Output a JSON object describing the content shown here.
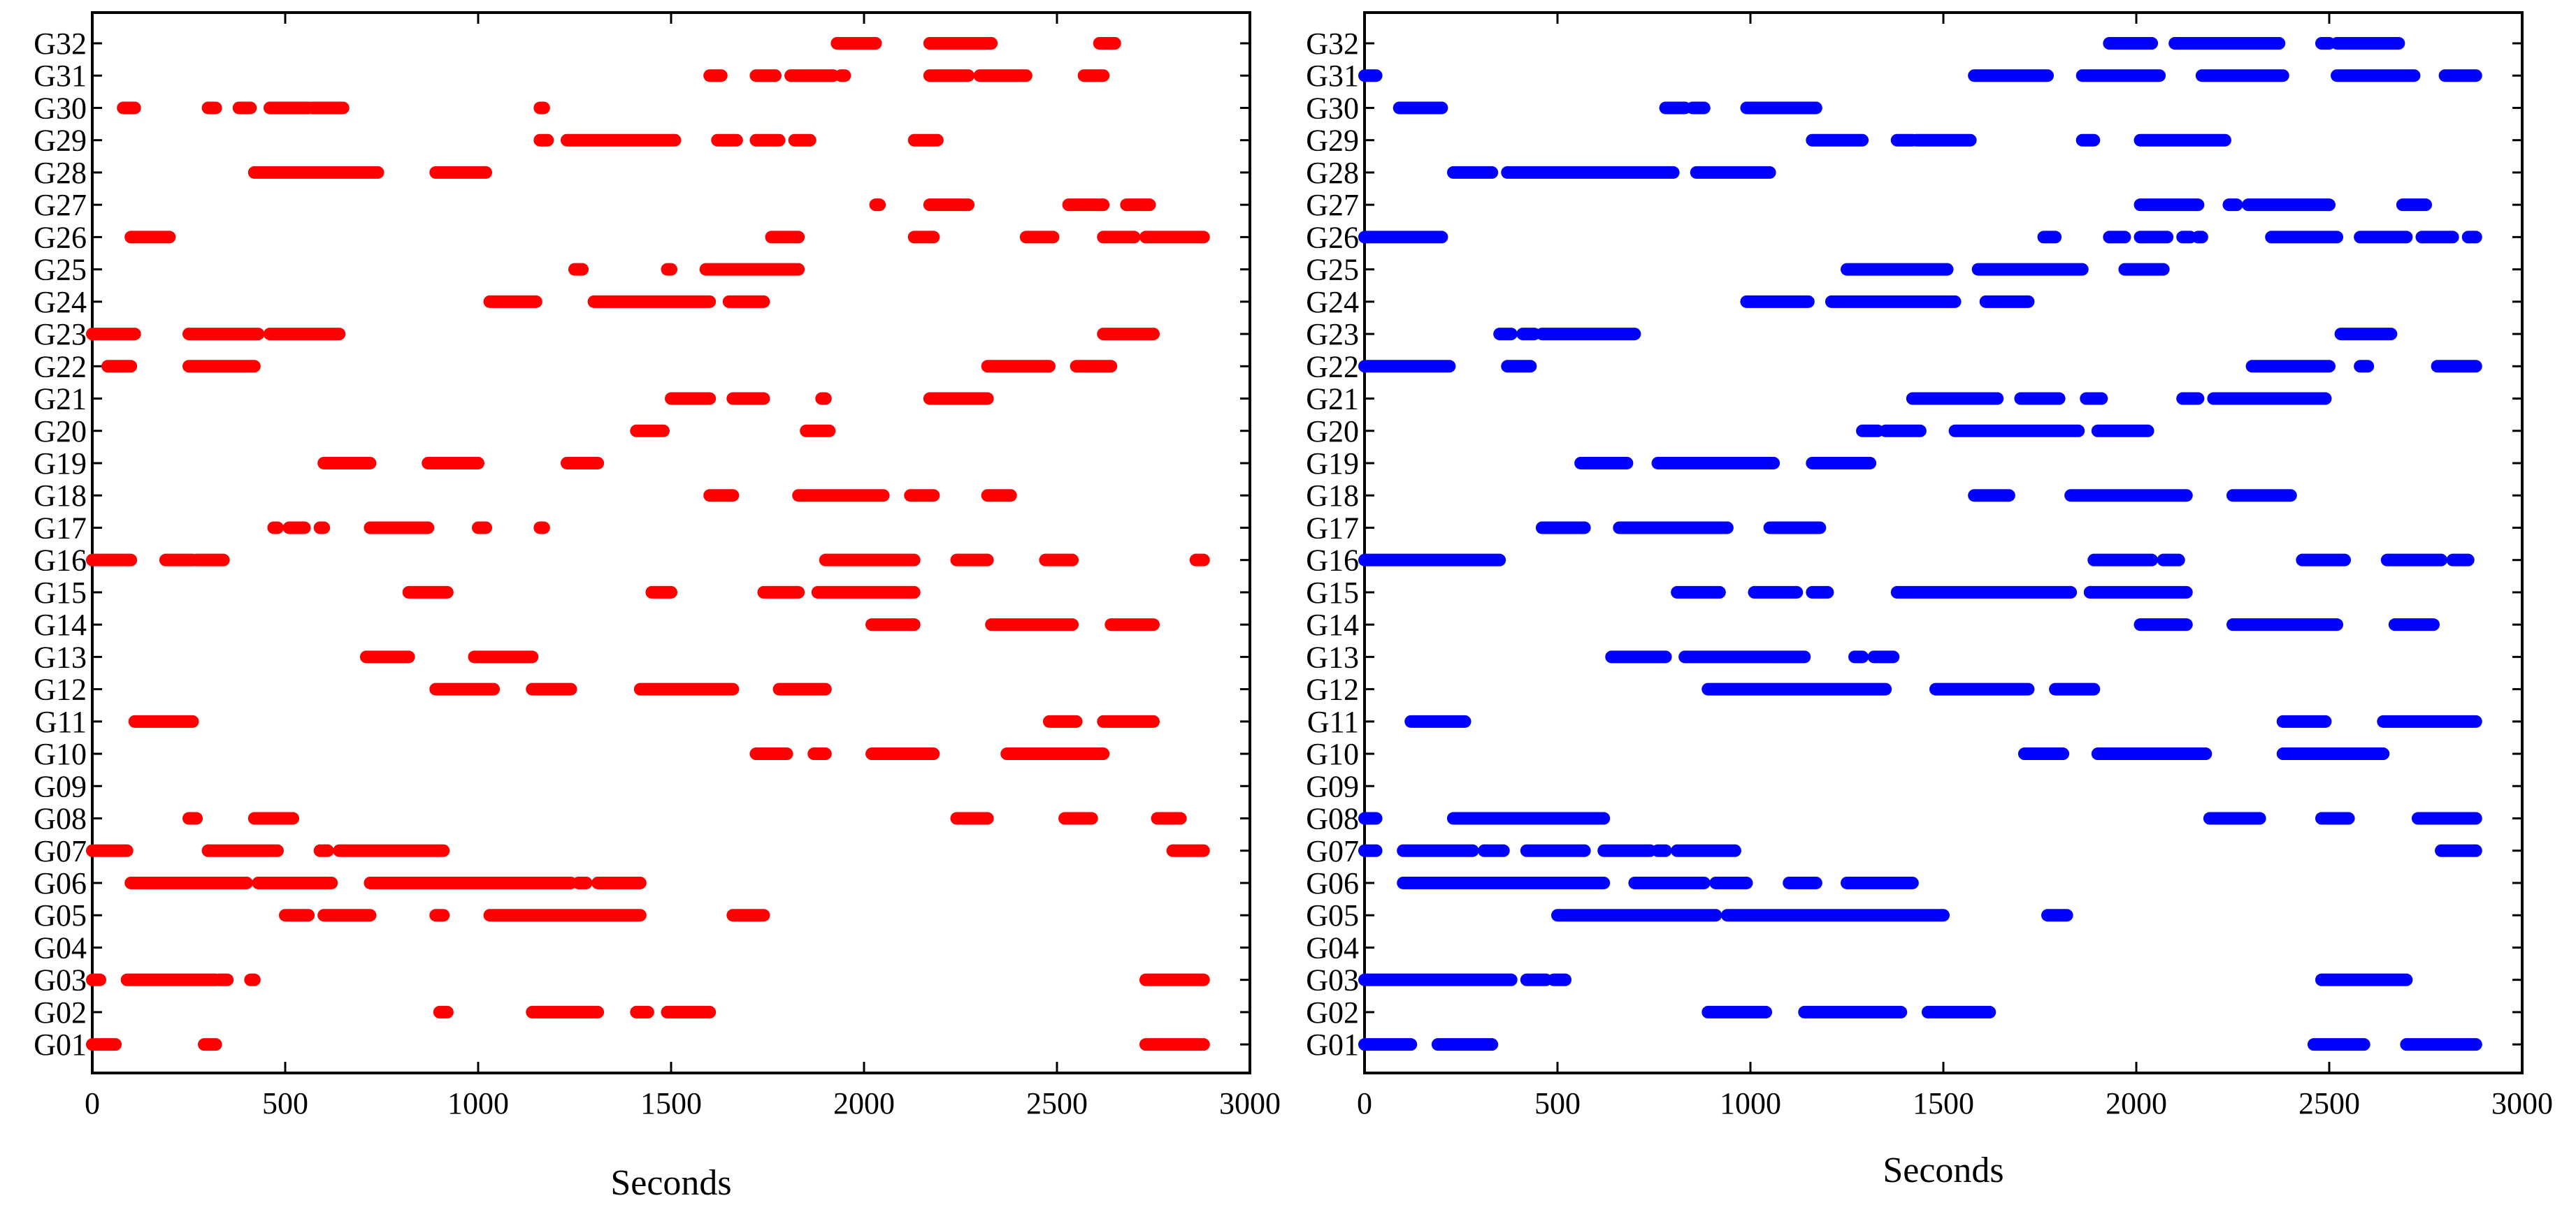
{
  "chart_data": [
    {
      "type": "scatter",
      "title": "",
      "xlabel": "Seconds",
      "ylabel": "",
      "xlim": [
        0,
        3000
      ],
      "xticks": [
        0,
        500,
        1000,
        1500,
        2000,
        2500,
        3000
      ],
      "categories": [
        "G01",
        "G02",
        "G03",
        "G04",
        "G05",
        "G06",
        "G07",
        "G08",
        "G09",
        "G10",
        "G11",
        "G12",
        "G13",
        "G14",
        "G15",
        "G16",
        "G17",
        "G18",
        "G19",
        "G20",
        "G21",
        "G22",
        "G23",
        "G24",
        "G25",
        "G26",
        "G27",
        "G28",
        "G29",
        "G30",
        "G31",
        "G32"
      ],
      "marker_color": "#ff0000",
      "grid": false,
      "segments": {
        "G01": [
          [
            0,
            60
          ],
          [
            290,
            320
          ],
          [
            2730,
            2880
          ]
        ],
        "G02": [
          [
            900,
            920
          ],
          [
            1140,
            1310
          ],
          [
            1410,
            1440
          ],
          [
            1490,
            1600
          ]
        ],
        "G03": [
          [
            0,
            20
          ],
          [
            90,
            320
          ],
          [
            330,
            350
          ],
          [
            410,
            420
          ],
          [
            2730,
            2880
          ]
        ],
        "G04": [],
        "G05": [
          [
            500,
            560
          ],
          [
            600,
            720
          ],
          [
            890,
            910
          ],
          [
            1030,
            1420
          ],
          [
            1660,
            1740
          ]
        ],
        "G06": [
          [
            100,
            400
          ],
          [
            430,
            620
          ],
          [
            720,
            1240
          ],
          [
            1260,
            1280
          ],
          [
            1310,
            1420
          ]
        ],
        "G07": [
          [
            0,
            90
          ],
          [
            300,
            480
          ],
          [
            590,
            610
          ],
          [
            640,
            910
          ],
          [
            2800,
            2880
          ]
        ],
        "G08": [
          [
            250,
            270
          ],
          [
            420,
            520
          ],
          [
            2240,
            2320
          ],
          [
            2520,
            2590
          ],
          [
            2760,
            2820
          ]
        ],
        "G09": [],
        "G10": [
          [
            1720,
            1800
          ],
          [
            1870,
            1900
          ],
          [
            2020,
            2180
          ],
          [
            2370,
            2620
          ]
        ],
        "G11": [
          [
            110,
            260
          ],
          [
            2480,
            2550
          ],
          [
            2620,
            2750
          ]
        ],
        "G12": [
          [
            890,
            1040
          ],
          [
            1140,
            1240
          ],
          [
            1420,
            1660
          ],
          [
            1780,
            1900
          ]
        ],
        "G13": [
          [
            710,
            820
          ],
          [
            990,
            1140
          ]
        ],
        "G14": [
          [
            2020,
            2130
          ],
          [
            2330,
            2540
          ],
          [
            2640,
            2750
          ]
        ],
        "G15": [
          [
            820,
            920
          ],
          [
            1450,
            1500
          ],
          [
            1740,
            1830
          ],
          [
            1880,
            2130
          ]
        ],
        "G16": [
          [
            0,
            100
          ],
          [
            190,
            260
          ],
          [
            270,
            340
          ],
          [
            1900,
            2130
          ],
          [
            2240,
            2320
          ],
          [
            2470,
            2540
          ],
          [
            2860,
            2880
          ]
        ],
        "G17": [
          [
            470,
            480
          ],
          [
            510,
            550
          ],
          [
            590,
            600
          ],
          [
            720,
            870
          ],
          [
            1000,
            1020
          ],
          [
            1160,
            1170
          ]
        ],
        "G18": [
          [
            1600,
            1660
          ],
          [
            1830,
            2050
          ],
          [
            2120,
            2180
          ],
          [
            2320,
            2380
          ]
        ],
        "G19": [
          [
            600,
            720
          ],
          [
            870,
            1000
          ],
          [
            1230,
            1310
          ]
        ],
        "G20": [
          [
            1410,
            1480
          ],
          [
            1850,
            1910
          ]
        ],
        "G21": [
          [
            1500,
            1600
          ],
          [
            1660,
            1740
          ],
          [
            1890,
            1900
          ],
          [
            2170,
            2320
          ]
        ],
        "G22": [
          [
            40,
            100
          ],
          [
            250,
            420
          ],
          [
            2320,
            2480
          ],
          [
            2550,
            2640
          ]
        ],
        "G23": [
          [
            0,
            110
          ],
          [
            250,
            430
          ],
          [
            460,
            640
          ],
          [
            2620,
            2750
          ]
        ],
        "G24": [
          [
            1030,
            1150
          ],
          [
            1300,
            1600
          ],
          [
            1650,
            1740
          ]
        ],
        "G25": [
          [
            1250,
            1270
          ],
          [
            1490,
            1500
          ],
          [
            1590,
            1830
          ]
        ],
        "G26": [
          [
            100,
            200
          ],
          [
            1760,
            1830
          ],
          [
            2130,
            2180
          ],
          [
            2420,
            2490
          ],
          [
            2620,
            2700
          ],
          [
            2730,
            2880
          ]
        ],
        "G27": [
          [
            2030,
            2040
          ],
          [
            2170,
            2270
          ],
          [
            2530,
            2620
          ],
          [
            2680,
            2740
          ]
        ],
        "G28": [
          [
            420,
            740
          ],
          [
            890,
            1020
          ]
        ],
        "G29": [
          [
            1160,
            1180
          ],
          [
            1230,
            1510
          ],
          [
            1620,
            1670
          ],
          [
            1720,
            1780
          ],
          [
            1820,
            1860
          ],
          [
            2130,
            2190
          ]
        ],
        "G30": [
          [
            80,
            110
          ],
          [
            300,
            320
          ],
          [
            380,
            410
          ],
          [
            460,
            560
          ],
          [
            570,
            650
          ],
          [
            1160,
            1170
          ]
        ],
        "G31": [
          [
            1600,
            1630
          ],
          [
            1720,
            1770
          ],
          [
            1810,
            1920
          ],
          [
            1940,
            1950
          ],
          [
            2170,
            2270
          ],
          [
            2300,
            2420
          ],
          [
            2570,
            2620
          ]
        ],
        "G32": [
          [
            1930,
            2030
          ],
          [
            2170,
            2330
          ],
          [
            2610,
            2650
          ]
        ]
      }
    },
    {
      "type": "scatter",
      "title": "",
      "xlabel": "Seconds",
      "ylabel": "",
      "xlim": [
        0,
        3000
      ],
      "xticks": [
        0,
        500,
        1000,
        1500,
        2000,
        2500,
        3000
      ],
      "categories": [
        "G01",
        "G02",
        "G03",
        "G04",
        "G05",
        "G06",
        "G07",
        "G08",
        "G09",
        "G10",
        "G11",
        "G12",
        "G13",
        "G14",
        "G15",
        "G16",
        "G17",
        "G18",
        "G19",
        "G20",
        "G21",
        "G22",
        "G23",
        "G24",
        "G25",
        "G26",
        "G27",
        "G28",
        "G29",
        "G30",
        "G31",
        "G32"
      ],
      "marker_color": "#0000ff",
      "grid": false,
      "segments": {
        "G01": [
          [
            0,
            120
          ],
          [
            190,
            330
          ],
          [
            2460,
            2590
          ],
          [
            2700,
            2880
          ]
        ],
        "G02": [
          [
            890,
            1040
          ],
          [
            1140,
            1390
          ],
          [
            1460,
            1620
          ]
        ],
        "G03": [
          [
            0,
            380
          ],
          [
            420,
            470
          ],
          [
            490,
            520
          ],
          [
            2480,
            2700
          ]
        ],
        "G04": [],
        "G05": [
          [
            500,
            910
          ],
          [
            940,
            1500
          ],
          [
            1770,
            1820
          ]
        ],
        "G06": [
          [
            100,
            620
          ],
          [
            700,
            880
          ],
          [
            910,
            990
          ],
          [
            1100,
            1170
          ],
          [
            1250,
            1420
          ]
        ],
        "G07": [
          [
            0,
            30
          ],
          [
            100,
            280
          ],
          [
            310,
            360
          ],
          [
            420,
            570
          ],
          [
            620,
            740
          ],
          [
            760,
            780
          ],
          [
            810,
            960
          ],
          [
            2790,
            2880
          ]
        ],
        "G08": [
          [
            0,
            30
          ],
          [
            230,
            620
          ],
          [
            2190,
            2320
          ],
          [
            2480,
            2550
          ],
          [
            2730,
            2880
          ]
        ],
        "G09": [],
        "G10": [
          [
            1710,
            1810
          ],
          [
            1900,
            2180
          ],
          [
            2380,
            2640
          ]
        ],
        "G11": [
          [
            120,
            260
          ],
          [
            2380,
            2490
          ],
          [
            2640,
            2880
          ]
        ],
        "G12": [
          [
            890,
            1350
          ],
          [
            1480,
            1720
          ],
          [
            1790,
            1890
          ]
        ],
        "G13": [
          [
            640,
            780
          ],
          [
            830,
            1140
          ],
          [
            1270,
            1290
          ],
          [
            1320,
            1370
          ]
        ],
        "G14": [
          [
            2010,
            2130
          ],
          [
            2250,
            2520
          ],
          [
            2670,
            2770
          ]
        ],
        "G15": [
          [
            810,
            920
          ],
          [
            1010,
            1120
          ],
          [
            1160,
            1200
          ],
          [
            1380,
            1830
          ],
          [
            1880,
            2130
          ]
        ],
        "G16": [
          [
            0,
            350
          ],
          [
            1890,
            2040
          ],
          [
            2070,
            2110
          ],
          [
            2430,
            2540
          ],
          [
            2650,
            2790
          ],
          [
            2820,
            2860
          ]
        ],
        "G17": [
          [
            460,
            570
          ],
          [
            660,
            940
          ],
          [
            1050,
            1180
          ]
        ],
        "G18": [
          [
            1580,
            1670
          ],
          [
            1830,
            2130
          ],
          [
            2250,
            2400
          ]
        ],
        "G19": [
          [
            560,
            680
          ],
          [
            760,
            1060
          ],
          [
            1160,
            1310
          ]
        ],
        "G20": [
          [
            1290,
            1330
          ],
          [
            1350,
            1440
          ],
          [
            1530,
            1850
          ],
          [
            1900,
            2030
          ]
        ],
        "G21": [
          [
            1420,
            1640
          ],
          [
            1700,
            1800
          ],
          [
            1870,
            1910
          ],
          [
            2120,
            2160
          ],
          [
            2200,
            2490
          ]
        ],
        "G22": [
          [
            0,
            220
          ],
          [
            370,
            430
          ],
          [
            2300,
            2500
          ],
          [
            2580,
            2600
          ],
          [
            2780,
            2880
          ]
        ],
        "G23": [
          [
            350,
            380
          ],
          [
            410,
            440
          ],
          [
            460,
            700
          ],
          [
            2530,
            2660
          ]
        ],
        "G24": [
          [
            990,
            1150
          ],
          [
            1210,
            1530
          ],
          [
            1610,
            1720
          ]
        ],
        "G25": [
          [
            1250,
            1510
          ],
          [
            1590,
            1860
          ],
          [
            1970,
            2070
          ]
        ],
        "G26": [
          [
            0,
            200
          ],
          [
            1760,
            1790
          ],
          [
            1930,
            1970
          ],
          [
            2010,
            2080
          ],
          [
            2120,
            2140
          ],
          [
            2160,
            2170
          ],
          [
            2350,
            2520
          ],
          [
            2580,
            2700
          ],
          [
            2740,
            2820
          ],
          [
            2860,
            2880
          ]
        ],
        "G27": [
          [
            2010,
            2160
          ],
          [
            2240,
            2260
          ],
          [
            2290,
            2500
          ],
          [
            2690,
            2750
          ]
        ],
        "G28": [
          [
            230,
            330
          ],
          [
            370,
            800
          ],
          [
            860,
            1050
          ]
        ],
        "G29": [
          [
            1160,
            1290
          ],
          [
            1380,
            1420
          ],
          [
            1430,
            1570
          ],
          [
            1860,
            1890
          ],
          [
            2010,
            2230
          ]
        ],
        "G30": [
          [
            90,
            200
          ],
          [
            780,
            830
          ],
          [
            850,
            880
          ],
          [
            990,
            1170
          ]
        ],
        "G31": [
          [
            0,
            30
          ],
          [
            1580,
            1770
          ],
          [
            1860,
            2060
          ],
          [
            2170,
            2380
          ],
          [
            2520,
            2720
          ],
          [
            2800,
            2880
          ]
        ],
        "G32": [
          [
            1930,
            2040
          ],
          [
            2100,
            2370
          ],
          [
            2480,
            2500
          ],
          [
            2520,
            2680
          ]
        ]
      }
    }
  ]
}
